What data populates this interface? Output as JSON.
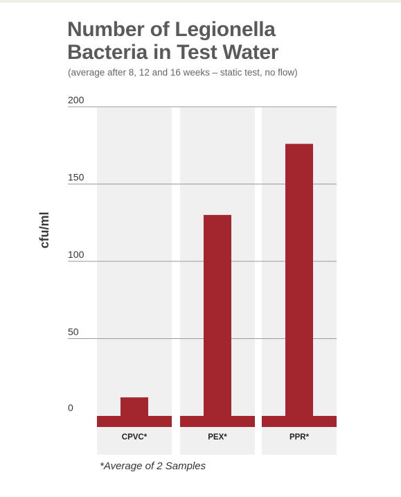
{
  "title_line1": "Number of Legionella",
  "title_line2": "Bacteria in Test Water",
  "subtitle": "(average after 8, 12 and 16 weeks – static test, no flow)",
  "footnote": "*Average of 2 Samples",
  "colors": {
    "bar": "#a3262f",
    "panel": "#f0f0f0",
    "grid": "#9a9a9a",
    "title": "#5a5a5a"
  },
  "chart_data": {
    "type": "bar",
    "title": "Number of Legionella Bacteria in Test Water",
    "subtitle": "(average after 8, 12 and 16 weeks – static test, no flow)",
    "ylabel": "cfu/ml",
    "xlabel": "",
    "categories": [
      "CPVC*",
      "PEX*",
      "PPR*"
    ],
    "values": [
      12,
      130,
      176
    ],
    "ylim": [
      0,
      200
    ],
    "yticks": [
      200,
      150,
      100,
      50,
      0
    ],
    "grid": true,
    "legend": "none"
  }
}
